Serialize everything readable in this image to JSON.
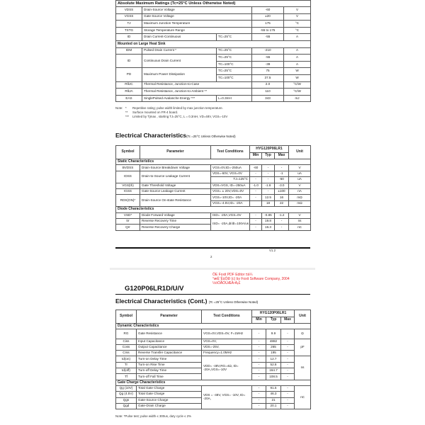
{
  "page1": {
    "abs_max": {
      "title": "Absolute Maximum Ratings (Tc=25°C Unless Otherwise Noted)",
      "rows": [
        {
          "cells": [
            "VDSS",
            {
              "t": "Drain-Source Voltage",
              "cs": 2,
              "c": "l"
            },
            "-60",
            "V"
          ]
        },
        {
          "cells": [
            "VGSS",
            {
              "t": "Gate-Source Voltage",
              "cs": 2,
              "c": "l"
            },
            "±20",
            "V"
          ]
        },
        {
          "cells": [
            "TJ",
            {
              "t": "Maximum Junction Temperature",
              "cs": 2,
              "c": "l"
            },
            "175",
            "°C"
          ]
        },
        {
          "cells": [
            "TSTG",
            {
              "t": "Storage Temperature Range",
              "cs": 2,
              "c": "l"
            },
            "-55 to 175",
            "°C"
          ]
        },
        {
          "cells": [
            "ID",
            {
              "t": "Drain Current-Continuous",
              "c": "l"
            },
            {
              "t": "TC=25°C",
              "c": "l"
            },
            "-55",
            "A"
          ]
        },
        {
          "section": "Mounted on Large Heat Sink"
        },
        {
          "cells": [
            "IDM",
            {
              "t": "Pulsed Drain Current *",
              "c": "l"
            },
            {
              "t": "TC=25°C",
              "c": "l"
            },
            "-210",
            "A"
          ]
        },
        {
          "cells": [
            {
              "t": "ID",
              "rs": 2
            },
            {
              "t": "Continuous Drain Current",
              "rs": 2,
              "c": "l"
            },
            {
              "t": "TC=25°C",
              "c": "l"
            },
            "-55",
            "A"
          ]
        },
        {
          "cells": [
            {
              "t": "TC=100°C",
              "c": "l"
            },
            "-39",
            "A"
          ]
        },
        {
          "cells": [
            {
              "t": "PD",
              "rs": 2
            },
            {
              "t": "Maximum Power Dissipation",
              "rs": 2,
              "c": "l"
            },
            {
              "t": "TC=25°C",
              "c": "l"
            },
            "75",
            "W"
          ]
        },
        {
          "cells": [
            {
              "t": "TC=100°C",
              "c": "l"
            },
            "37.5",
            "W"
          ]
        },
        {
          "cells": [
            "RθJC",
            {
              "t": "Thermal Resistance, Junction-to-Case",
              "cs": 2,
              "c": "l"
            },
            "2.0",
            "°C/W"
          ]
        },
        {
          "cells": [
            "RθJA",
            {
              "t": "Thermal Resistance, Junction-to-Ambient **",
              "cs": 2,
              "c": "l"
            },
            "110",
            "°C/W"
          ]
        },
        {
          "cells": [
            "EAS",
            {
              "t": "SinglePulsed-Avalanche Energy ***",
              "c": "l"
            },
            {
              "t": "L=0.3mH",
              "c": "l"
            },
            "343",
            "mJ"
          ]
        }
      ]
    },
    "notes": {
      "label": "Note:",
      "items": [
        {
          "mark": "*",
          "text": "Repetitive rating; pulse width limited by max junction temperature."
        },
        {
          "mark": "**",
          "text": "Surface mounted on FR-4 board."
        },
        {
          "mark": "***",
          "text": "Limited by Tjmax , starting TJ=25°C, L = 0.3mH, VD=48V, VGS=-10V"
        }
      ]
    },
    "ec_title": "Electrical Characteristics",
    "ec_subtitle": "(Tc =25°C Unless Otherwise Noted)",
    "ec_table": {
      "headers": {
        "symbol": "Symbol",
        "parameter": "Parameter",
        "conditions": "Test Conditions",
        "part": "HYG120P06LR1",
        "min": "Min",
        "typ": "Typ",
        "max": "Max",
        "unit": "Unit"
      },
      "rows": [
        {
          "section": "Static Characteristics"
        },
        {
          "cells": [
            "BVDSS",
            {
              "t": "Drain-Source Breakdown Voltage",
              "c": "l"
            },
            {
              "t": "VGS=0V,ID=-250uA",
              "c": "l"
            },
            "-60",
            "-",
            "-",
            "V"
          ]
        },
        {
          "cells": [
            {
              "t": "IDSS",
              "rs": 2
            },
            {
              "t": "Drain-to-Source Leakage Current",
              "rs": 2,
              "c": "l"
            },
            {
              "t": "VDS=-60V, VGS=0V",
              "c": "l"
            },
            "-",
            "-",
            "-1",
            "uA"
          ]
        },
        {
          "cells": [
            {
              "t": "TJ=125°C",
              "c": "r"
            },
            "-",
            "-",
            "-50",
            "uA"
          ]
        },
        {
          "cells": [
            "VGS(th)",
            {
              "t": "Gate Threshold Voltage",
              "c": "l"
            },
            {
              "t": "VDS=VGS, ID=-250uA",
              "c": "l"
            },
            "-1.0",
            "-1.8",
            "-3.0",
            "V"
          ]
        },
        {
          "cells": [
            "IGSS",
            {
              "t": "Gate-Source Leakage Current",
              "c": "l"
            },
            {
              "t": "VGS= ± 20V,VDS=0V",
              "c": "l"
            },
            "-",
            "-",
            "±100",
            "nA"
          ]
        },
        {
          "cells": [
            {
              "t": "RDS(ON)*",
              "rs": 2
            },
            {
              "t": "Drain-Source On-state Resistance",
              "rs": 2,
              "c": "l"
            },
            {
              "t": "VGS=-10V,ID= -20A",
              "c": "l"
            },
            "-",
            "12.5",
            "16",
            "mΩ"
          ]
        },
        {
          "cells": [
            {
              "t": "VGS=-4.5V,ID= -20A",
              "c": "l"
            },
            "",
            "18",
            "22",
            "mΩ"
          ]
        },
        {
          "section": "Diode Characteristics"
        },
        {
          "cells": [
            "VSD*",
            {
              "t": "Diode Forward Voltage",
              "c": "l"
            },
            {
              "t": "ISD= -20A,VGS=0V",
              "c": "l"
            },
            "-",
            "-0.85",
            "-1.2",
            "V"
          ]
        },
        {
          "cells": [
            "trr",
            {
              "t": "Reverse Recovery Time",
              "c": "l"
            },
            {
              "t": "ISD= -20A,dI/dt=100A/us",
              "rs": 2,
              "c": "l"
            },
            "-",
            "19.8",
            "-",
            "ns"
          ]
        },
        {
          "cells": [
            "Qrr",
            {
              "t": "Reverse Recovery Charge",
              "c": "l"
            },
            "-",
            "16.3",
            "-",
            "nC"
          ]
        }
      ]
    },
    "footer": {
      "page_number": "2",
      "version": "V1.2"
    }
  },
  "watermark": {
    "lines": [
      "ÖE Foxit PDF Editor ±à¼­",
      "°æÈ¨ËùÓÐ (c) by Foxit Software Company, 2004",
      "½öÓÃÓÚÆÀ¹À¡£"
    ]
  },
  "page2": {
    "part_title": "G120P06LR1D/U/V",
    "ec_title": "Electrical Characteristics (Cont.)",
    "ec_subtitle": "(Tc =25°C Unless Otherwise Noted)",
    "ec_table": {
      "headers": {
        "symbol": "Symbol",
        "parameter": "Parameter",
        "conditions": "Test Conditions",
        "part": "HYG120P06LR1",
        "min": "Min",
        "typ": "Typ",
        "max": "Max",
        "unit": "Unit"
      },
      "rows": [
        {
          "section": "Dynamic Characteristics"
        },
        {
          "tall": true,
          "cells": [
            "RG",
            {
              "t": "Gate Resistance",
              "c": "l"
            },
            {
              "t": "VGS=0V,VDS=0V, F=1MHz",
              "c": "wrap"
            },
            "-",
            "9.9",
            "-",
            "Ω"
          ]
        },
        {
          "cells": [
            "Ciss",
            {
              "t": "Input Capacitance",
              "c": "l"
            },
            {
              "t": "VGS=0V,",
              "c": "l"
            },
            "-",
            "4882",
            "-",
            {
              "t": "pF",
              "rs": 3
            }
          ]
        },
        {
          "cells": [
            "Coss",
            {
              "t": "Output Capacitance",
              "c": "l"
            },
            {
              "t": "VDS=-25V,",
              "c": "l"
            },
            "-",
            "265",
            "-"
          ]
        },
        {
          "cells": [
            "Crss",
            {
              "t": "Reverse Transfer Capacitance",
              "c": "l"
            },
            {
              "t": "Frequency=1.0MHz",
              "c": "l"
            },
            "-",
            "195",
            "-"
          ]
        },
        {
          "cells": [
            "td(on)",
            {
              "t": "Turn-on Delay Time",
              "c": "l"
            },
            {
              "t": "VDD= -48V,RG=4Ω, ID= -20A,VGS=-10V",
              "rs": 4,
              "c": "wrap"
            },
            "-",
            "12.7",
            "-",
            {
              "t": "ns",
              "rs": 4
            }
          ]
        },
        {
          "cells": [
            "Tr",
            {
              "t": "Turn-on Rise Time",
              "c": "l"
            },
            "-",
            "52.8",
            "-"
          ]
        },
        {
          "cells": [
            "td(off)",
            {
              "t": "Turn-off Delay Time",
              "c": "l"
            },
            "-",
            "164.7",
            "-"
          ]
        },
        {
          "cells": [
            "Tf",
            {
              "t": "Turn-off Fall Time",
              "c": "l"
            },
            "-",
            "108.5",
            "-"
          ]
        },
        {
          "section": "Gate Charge   Characteristics"
        },
        {
          "cells": [
            "Qg (10V)",
            {
              "t": "Total Gate Charge",
              "c": "l"
            },
            {
              "t": "VDS = -48V, VGS= -10V, ID= -20A,",
              "rs": 4,
              "c": "wrap"
            },
            "-",
            "91.5",
            "-",
            {
              "t": "nC",
              "rs": 4
            }
          ]
        },
        {
          "cells": [
            "Qg (4.5V)",
            {
              "t": "Total Gate Charge",
              "c": "l"
            },
            "-",
            "46.3",
            "-"
          ]
        },
        {
          "cells": [
            "Qgs",
            {
              "t": "Gate-Source Charge",
              "c": "l"
            },
            "-",
            "21",
            "-"
          ]
        },
        {
          "cells": [
            "Qgd",
            {
              "t": "Gate-Drain Charge",
              "c": "l"
            },
            "-",
            "20.1",
            "-"
          ]
        }
      ]
    },
    "note": "Note: *Pulse test; pulse width ≤ 300us, duty cycle ≤ 2%"
  }
}
